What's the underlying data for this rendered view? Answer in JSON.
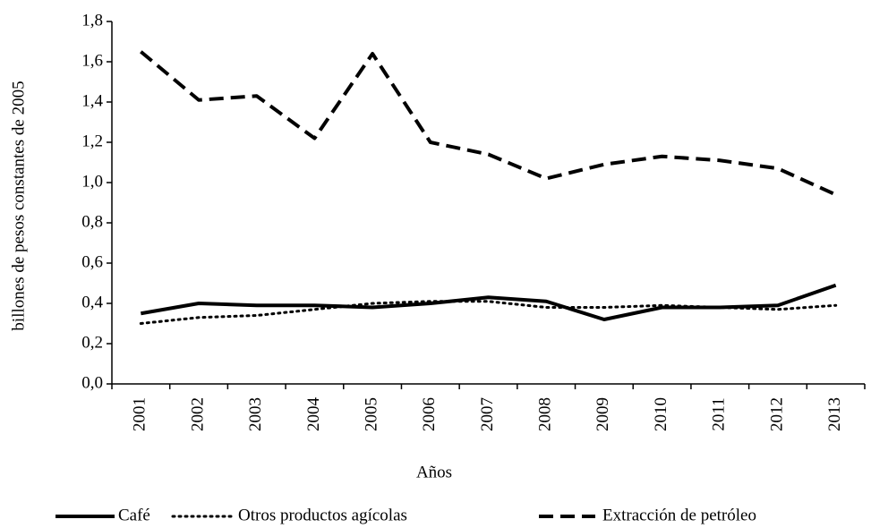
{
  "chart_data": {
    "type": "line",
    "x_label": "Años",
    "y_label": "billones de pesos constantes de 2005",
    "categories": [
      "2001",
      "2002",
      "2003",
      "2004",
      "2005",
      "2006",
      "2007",
      "2008",
      "2009",
      "2010",
      "2011",
      "2012",
      "2013"
    ],
    "series": [
      {
        "name": "Café",
        "color": "#000000",
        "style": "solid",
        "values": [
          0.35,
          0.4,
          0.39,
          0.39,
          0.38,
          0.4,
          0.43,
          0.41,
          0.32,
          0.38,
          0.38,
          0.39,
          0.49
        ]
      },
      {
        "name": "Otros productos agícolas",
        "color": "#000000",
        "style": "dotted",
        "values": [
          0.3,
          0.33,
          0.34,
          0.37,
          0.4,
          0.41,
          0.41,
          0.38,
          0.38,
          0.39,
          0.38,
          0.37,
          0.39
        ]
      },
      {
        "name": "Extracción de petróleo",
        "color": "#000000",
        "style": "dashed",
        "values": [
          1.65,
          1.41,
          1.43,
          1.22,
          1.64,
          1.2,
          1.14,
          1.02,
          1.09,
          1.13,
          1.11,
          1.07,
          0.94
        ]
      }
    ],
    "ylim": [
      0,
      1.8
    ],
    "yticks": [
      {
        "value": 0,
        "label": "0,0"
      },
      {
        "value": 0.2,
        "label": "0,2"
      },
      {
        "value": 0.4,
        "label": "0,4"
      },
      {
        "value": 0.6,
        "label": "0,6"
      },
      {
        "value": 0.8,
        "label": "0,8"
      },
      {
        "value": 1.0,
        "label": "1,0"
      },
      {
        "value": 1.2,
        "label": "1,2"
      },
      {
        "value": 1.4,
        "label": "1,4"
      },
      {
        "value": 1.6,
        "label": "1,6"
      },
      {
        "value": 1.8,
        "label": "1,8"
      }
    ],
    "grid": false,
    "legend": "bottom"
  }
}
